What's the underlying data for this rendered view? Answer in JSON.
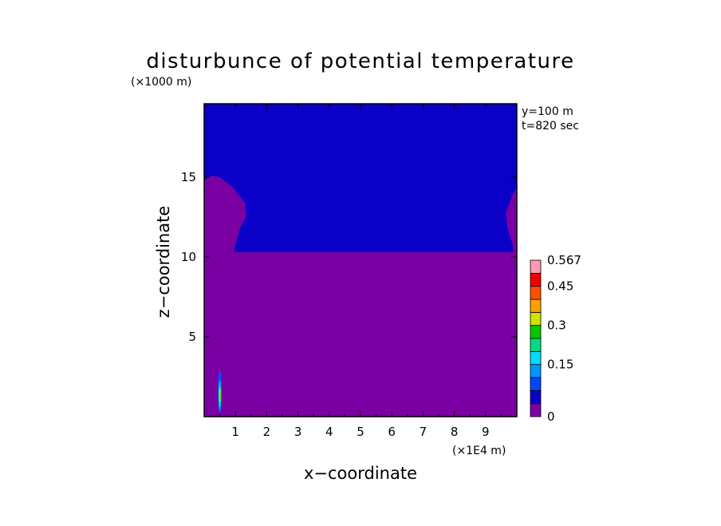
{
  "chart_data": {
    "type": "heatmap",
    "title": "disturbunce of potential temperature",
    "xlabel": "x−coordinate",
    "ylabel": "z−coordinate",
    "x_unit": "(×1E4 m)",
    "y_unit": "(×1000 m)",
    "annotations": [
      "y=100 m",
      "t=820 sec"
    ],
    "xlim": [
      0,
      10
    ],
    "ylim": [
      0,
      19.6
    ],
    "x_ticks": [
      1,
      2,
      3,
      4,
      5,
      6,
      7,
      8,
      9
    ],
    "y_ticks": [
      5,
      10,
      15
    ],
    "regions": [
      {
        "name": "upper layer",
        "value": 0.0,
        "color": "#0a00c8",
        "polygon": [
          [
            0,
            10.3
          ],
          [
            10,
            10.3
          ],
          [
            10,
            19.6
          ],
          [
            0,
            19.6
          ]
        ]
      },
      {
        "name": "lower layer",
        "value": 0.02,
        "color": "#7b00a3",
        "polygon": [
          [
            0,
            0
          ],
          [
            10,
            0
          ],
          [
            10,
            10.3
          ],
          [
            0,
            10.3
          ]
        ]
      },
      {
        "name": "left upper plume",
        "value": 0.02,
        "color": "#7b00a3",
        "polygon": [
          [
            0,
            10.3
          ],
          [
            0,
            14.8
          ],
          [
            0.25,
            15.1
          ],
          [
            0.5,
            15.0
          ],
          [
            0.9,
            14.4
          ],
          [
            1.3,
            13.4
          ],
          [
            1.35,
            12.6
          ],
          [
            1.15,
            11.8
          ],
          [
            1.0,
            10.8
          ],
          [
            0.95,
            10.3
          ]
        ]
      },
      {
        "name": "right upper plume",
        "value": 0.02,
        "color": "#7b00a3",
        "polygon": [
          [
            10,
            10.3
          ],
          [
            10,
            14.4
          ],
          [
            9.85,
            13.8
          ],
          [
            9.65,
            12.8
          ],
          [
            9.7,
            11.8
          ],
          [
            9.85,
            10.9
          ],
          [
            9.9,
            10.3
          ]
        ]
      }
    ],
    "hotspot": {
      "x": 0.5,
      "z_range": [
        0.2,
        2.9
      ],
      "layers": [
        {
          "value": 0.06,
          "color": "#0050ff",
          "width": 0.12,
          "z": [
            0.2,
            2.9
          ]
        },
        {
          "value": 0.12,
          "color": "#00b4ff",
          "width": 0.09,
          "z": [
            0.4,
            2.3
          ]
        },
        {
          "value": 0.2,
          "color": "#00e08c",
          "width": 0.07,
          "z": [
            0.6,
            2.0
          ]
        },
        {
          "value": 0.28,
          "color": "#c8e600",
          "width": 0.045,
          "z": [
            0.9,
            1.8
          ]
        },
        {
          "value": 0.35,
          "color": "#ffa000",
          "width": 0.03,
          "z": [
            1.1,
            1.6
          ]
        }
      ]
    },
    "colorbar": {
      "levels": [
        0,
        0.05,
        0.1,
        0.15,
        0.2,
        0.25,
        0.3,
        0.35,
        0.4,
        0.45,
        0.5,
        0.567
      ],
      "labels": [
        "0",
        "0.15",
        "0.3",
        "0.45",
        "0.567"
      ],
      "label_levels": [
        0,
        0.15,
        0.3,
        0.45,
        0.567
      ],
      "colors": [
        "#7b00a3",
        "#0a00c8",
        "#0046ff",
        "#0096ff",
        "#00dcff",
        "#00dc82",
        "#00c800",
        "#c8e600",
        "#ffa000",
        "#ff5000",
        "#ee0000",
        "#ff9ab4"
      ]
    }
  }
}
